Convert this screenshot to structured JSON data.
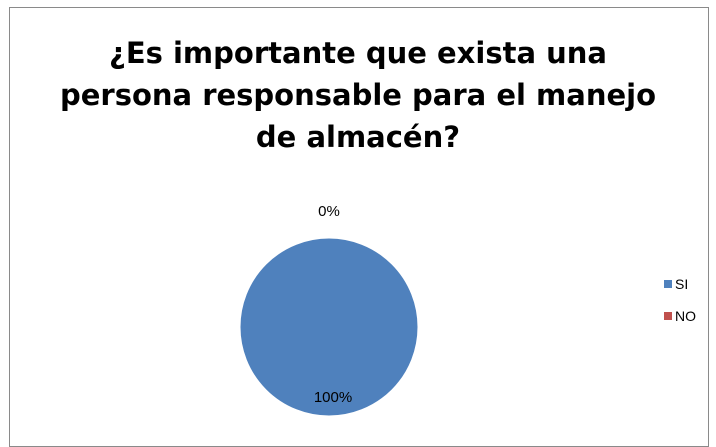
{
  "chart_data": {
    "type": "pie",
    "title_lines": [
      "¿Es importante que exista una",
      "persona responsable para el manejo",
      "de almacén?"
    ],
    "categories": [
      "SI",
      "NO"
    ],
    "values": [
      100,
      0
    ],
    "data_labels": [
      "100%",
      "0%"
    ],
    "colors": [
      "#4f81bd",
      "#c0504d"
    ],
    "legend_position": "right"
  }
}
